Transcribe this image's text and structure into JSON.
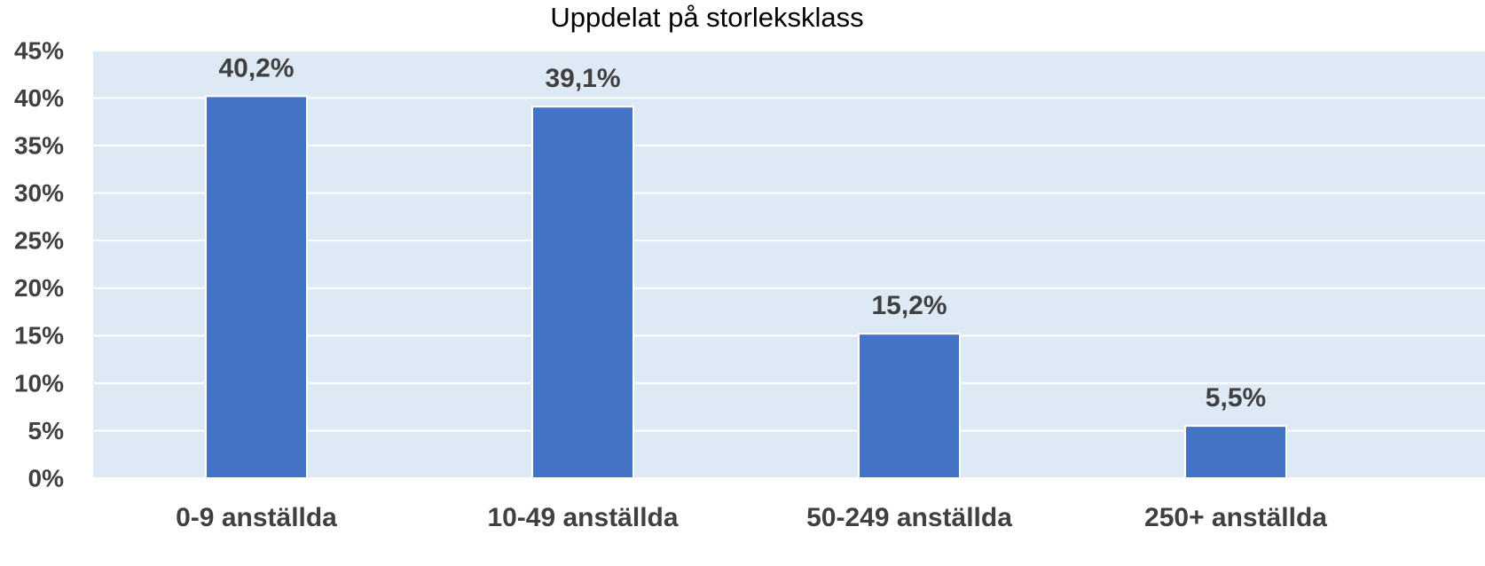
{
  "chart_data": {
    "type": "bar",
    "title": "Uppdelat på storleksklass",
    "categories": [
      "0-9 anställda",
      "10-49 anställda",
      "50-249 anställda",
      "250+ anställda"
    ],
    "values": [
      40.2,
      39.1,
      15.2,
      5.5
    ],
    "value_labels": [
      "40,2%",
      "39,1%",
      "15,2%",
      "5,5%"
    ],
    "color": "#4472c4",
    "ylim": [
      0,
      45
    ],
    "yticks": [
      {
        "value": 0,
        "label": "0%"
      },
      {
        "value": 5,
        "label": "5%"
      },
      {
        "value": 10,
        "label": "10%"
      },
      {
        "value": 15,
        "label": "15%"
      },
      {
        "value": 20,
        "label": "20%"
      },
      {
        "value": 25,
        "label": "25%"
      },
      {
        "value": 30,
        "label": "30%"
      },
      {
        "value": 35,
        "label": "35%"
      },
      {
        "value": 40,
        "label": "40%"
      },
      {
        "value": 45,
        "label": "45%"
      }
    ],
    "grid": true
  }
}
